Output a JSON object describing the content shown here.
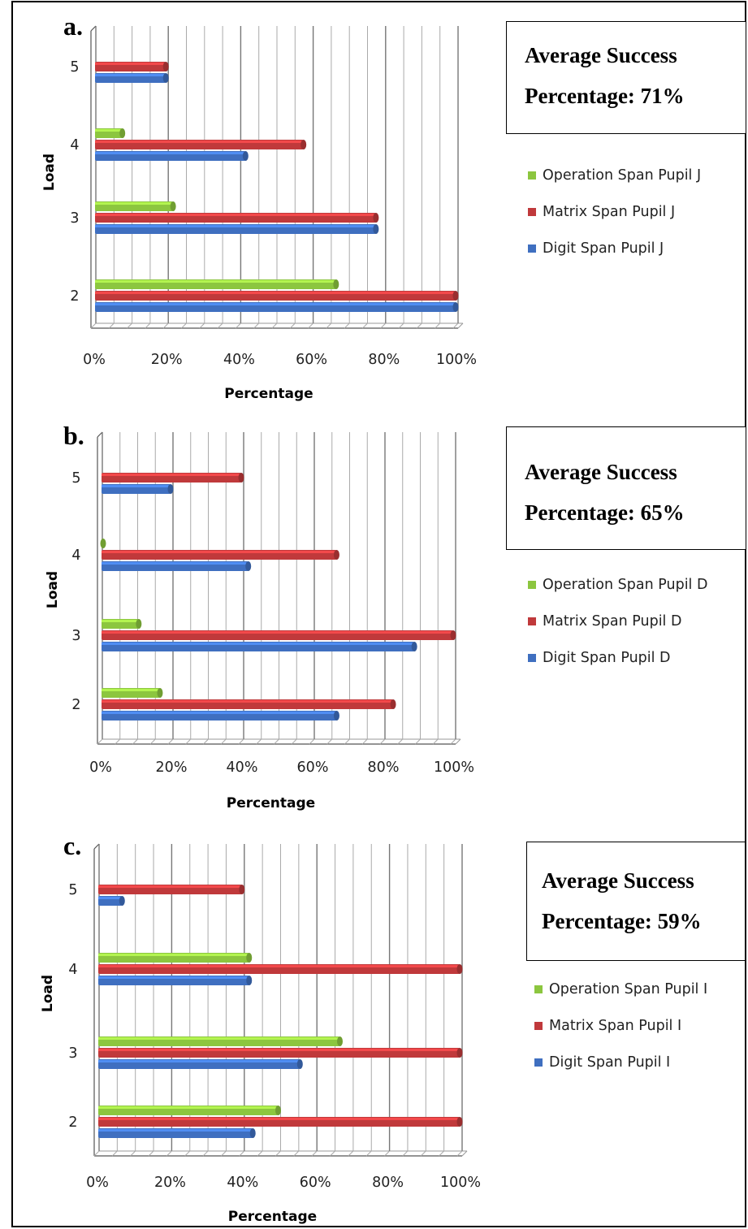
{
  "panels": [
    {
      "letter": "a.",
      "avg_line1": "Average Success",
      "avg_line2": "Percentage: 71%",
      "legend": [
        "Operation Span Pupil J",
        "Matrix Span Pupil J",
        "Digit Span Pupil J"
      ]
    },
    {
      "letter": "b.",
      "avg_line1": "Average Success",
      "avg_line2": "Percentage: 65%",
      "legend": [
        "Operation Span Pupil D",
        "Matrix Span Pupil D",
        "Digit Span Pupil D"
      ]
    },
    {
      "letter": "c.",
      "avg_line1": "Average Success",
      "avg_line2": "Percentage: 59%",
      "legend": [
        "Operation Span Pupil I",
        "Matrix Span Pupil I",
        "Digit Span Pupil I"
      ]
    }
  ],
  "colors": {
    "operation": "#8cc63f",
    "matrix": "#c0393b",
    "digit": "#3f6fc0"
  },
  "chart_data": [
    {
      "type": "bar",
      "orientation": "horizontal",
      "categories": [
        "2",
        "3",
        "4",
        "5"
      ],
      "xlabel": "Percentage",
      "ylabel": "Load",
      "xlim": [
        0,
        100
      ],
      "xticks": [
        "0%",
        "20%",
        "40%",
        "60%",
        "80%",
        "100%"
      ],
      "grid": true,
      "legend_position": "right",
      "series": [
        {
          "name": "Operation Span Pupil J",
          "values": [
            67,
            22,
            8,
            0
          ]
        },
        {
          "name": "Matrix Span Pupil J",
          "values": [
            100,
            78,
            58,
            20
          ]
        },
        {
          "name": "Digit Span Pupil J",
          "values": [
            100,
            78,
            42,
            20
          ]
        }
      ]
    },
    {
      "type": "bar",
      "orientation": "horizontal",
      "categories": [
        "2",
        "3",
        "4",
        "5"
      ],
      "xlabel": "Percentage",
      "ylabel": "Load",
      "xlim": [
        0,
        100
      ],
      "xticks": [
        "0%",
        "20%",
        "40%",
        "60%",
        "80%",
        "100%"
      ],
      "grid": true,
      "legend_position": "right",
      "series": [
        {
          "name": "Operation Span Pupil D",
          "values": [
            17,
            11,
            0.5,
            0
          ]
        },
        {
          "name": "Matrix Span Pupil D",
          "values": [
            83,
            100,
            67,
            40
          ]
        },
        {
          "name": "Digit Span Pupil D",
          "values": [
            67,
            89,
            42,
            20
          ]
        }
      ]
    },
    {
      "type": "bar",
      "orientation": "horizontal",
      "categories": [
        "2",
        "3",
        "4",
        "5"
      ],
      "xlabel": "Percentage",
      "ylabel": "Load",
      "xlim": [
        0,
        100
      ],
      "xticks": [
        "0%",
        "20%",
        "40%",
        "60%",
        "80%",
        "100%"
      ],
      "grid": true,
      "legend_position": "right",
      "series": [
        {
          "name": "Operation Span Pupil I",
          "values": [
            50,
            67,
            42,
            0
          ]
        },
        {
          "name": "Matrix Span Pupil I",
          "values": [
            100,
            100,
            100,
            40
          ]
        },
        {
          "name": "Digit Span Pupil I",
          "values": [
            43,
            56,
            42,
            7
          ]
        }
      ]
    }
  ]
}
